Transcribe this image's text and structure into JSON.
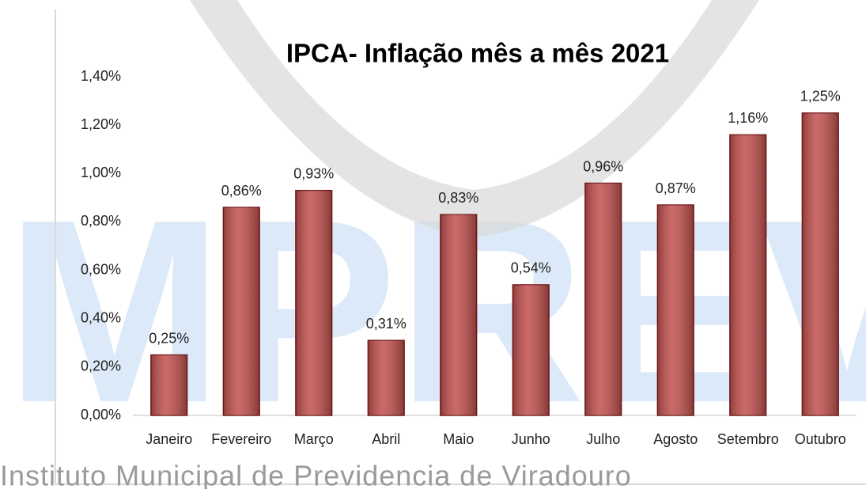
{
  "chart_data": {
    "type": "bar",
    "title": "IPCA- Inflação mês a mês 2021",
    "categories": [
      "Janeiro",
      "Fevereiro",
      "Março",
      "Abril",
      "Maio",
      "Junho",
      "Julho",
      "Agosto",
      "Setembro",
      "Outubro"
    ],
    "values": [
      0.25,
      0.86,
      0.93,
      0.31,
      0.83,
      0.54,
      0.96,
      0.87,
      1.16,
      1.25
    ],
    "value_labels": [
      "0,25%",
      "0,86%",
      "0,93%",
      "0,31%",
      "0,83%",
      "0,54%",
      "0,96%",
      "0,87%",
      "1,16%",
      "1,25%"
    ],
    "color": "#c0504d",
    "ylim": [
      0,
      1.4
    ],
    "yticks": [
      {
        "value": 0,
        "label": "0,00%"
      },
      {
        "value": 0.2,
        "label": "0,20%"
      },
      {
        "value": 0.4,
        "label": "0,40%"
      },
      {
        "value": 0.6,
        "label": "0,60%"
      },
      {
        "value": 0.8,
        "label": "0,80%"
      },
      {
        "value": 1.0,
        "label": "1,00%"
      },
      {
        "value": 1.2,
        "label": "1,20%"
      },
      {
        "value": 1.4,
        "label": "1,40%"
      }
    ],
    "grid": false,
    "watermark": "Instituto Municipal de Previdencia de Viradouro",
    "watermark_logo": "IMPREV"
  }
}
